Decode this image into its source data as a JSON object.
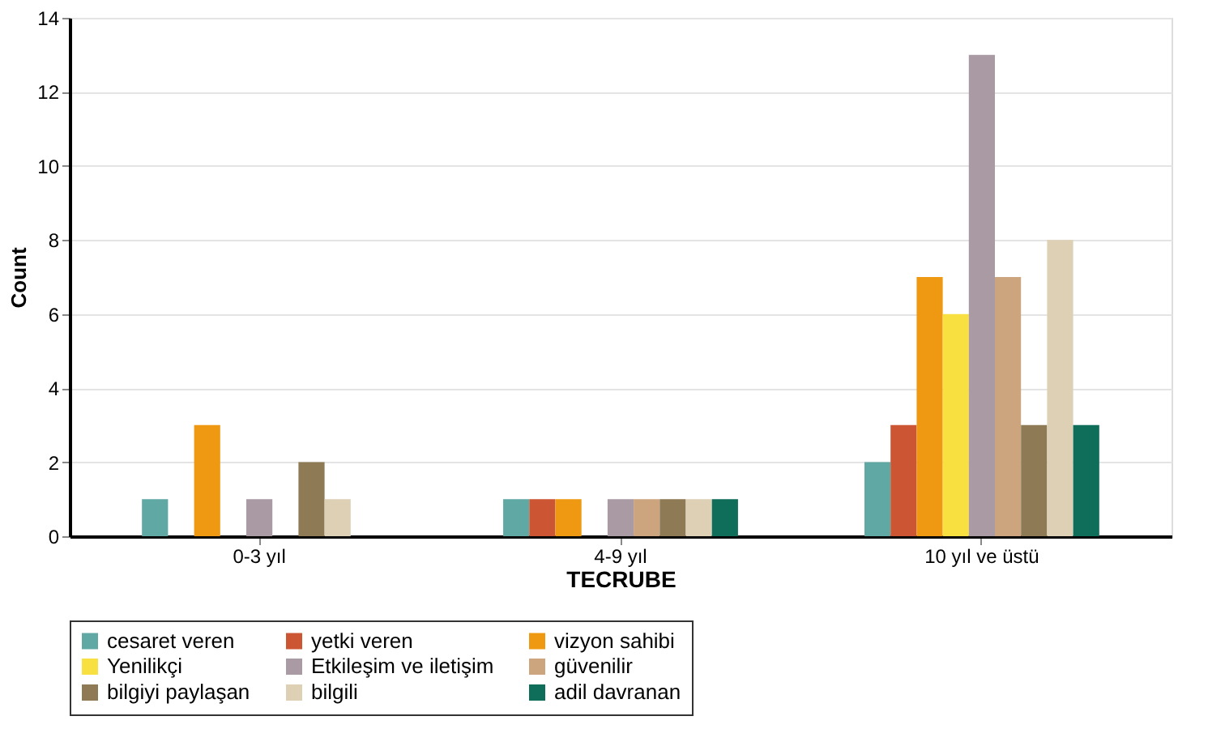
{
  "chart_data": {
    "type": "bar",
    "xlabel": "TECRUBE",
    "ylabel": "Count",
    "categories": [
      "0-3 yıl",
      "4-9 yıl",
      "10 yıl ve üstü"
    ],
    "series": [
      {
        "name": "cesaret veren",
        "color": "#5fa8a4",
        "values": [
          1,
          1,
          2
        ]
      },
      {
        "name": "yetki veren",
        "color": "#cc5533",
        "values": [
          0,
          1,
          3
        ]
      },
      {
        "name": "vizyon sahibi",
        "color": "#ee9911",
        "values": [
          3,
          1,
          7
        ]
      },
      {
        "name": "Yenilikçi",
        "color": "#f7e040",
        "values": [
          0,
          0,
          6
        ]
      },
      {
        "name": "Etkileşim ve iletişim",
        "color": "#aa9aa4",
        "values": [
          1,
          1,
          13
        ]
      },
      {
        "name": "güvenilir",
        "color": "#cca57e",
        "values": [
          0,
          1,
          7
        ]
      },
      {
        "name": "bilgiyi paylaşan",
        "color": "#8e7a55",
        "values": [
          2,
          1,
          3
        ]
      },
      {
        "name": "bilgili",
        "color": "#ddd0b5",
        "values": [
          1,
          1,
          8
        ]
      },
      {
        "name": "adil davranan",
        "color": "#0f6e5a",
        "values": [
          0,
          1,
          3
        ]
      }
    ],
    "ylim": [
      0,
      14
    ],
    "yticks": [
      0,
      2,
      4,
      6,
      8,
      10,
      12,
      14
    ],
    "grid": "y",
    "legend": "bottom"
  }
}
